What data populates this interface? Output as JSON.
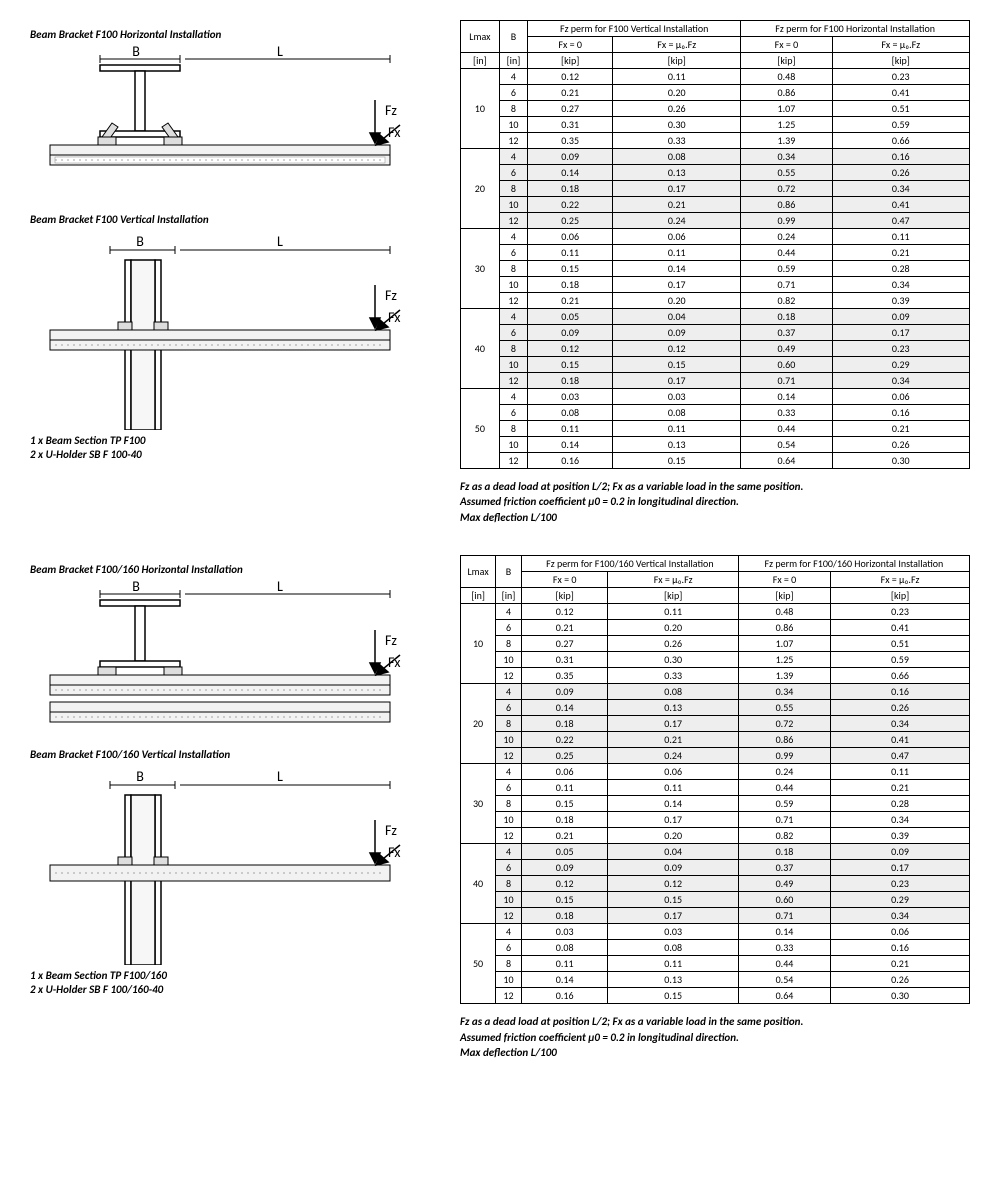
{
  "section1": {
    "title_h": "Beam Bracket F100 Horizontal Installation",
    "title_v": "Beam Bracket F100 Vertical Installation",
    "parts": [
      "1 x Beam Section TP F100",
      "2 x U-Holder SB F 100-40"
    ],
    "table": {
      "hdr_lmax": "Lmax",
      "hdr_b": "B",
      "hdr_vert": "Fz perm for F100 Vertical Installation",
      "hdr_horz": "Fz perm for F100 Horizontal Installation",
      "hdr_fx0": "Fx = 0",
      "hdr_fxmu": "Fx = μ₀.Fz",
      "unit_in": "[in]",
      "unit_kip": "[kip]",
      "groups": [
        {
          "lmax": "10",
          "shade": false,
          "rows": [
            [
              "4",
              "0.12",
              "0.11",
              "0.48",
              "0.23"
            ],
            [
              "6",
              "0.21",
              "0.20",
              "0.86",
              "0.41"
            ],
            [
              "8",
              "0.27",
              "0.26",
              "1.07",
              "0.51"
            ],
            [
              "10",
              "0.31",
              "0.30",
              "1.25",
              "0.59"
            ],
            [
              "12",
              "0.35",
              "0.33",
              "1.39",
              "0.66"
            ]
          ]
        },
        {
          "lmax": "20",
          "shade": true,
          "rows": [
            [
              "4",
              "0.09",
              "0.08",
              "0.34",
              "0.16"
            ],
            [
              "6",
              "0.14",
              "0.13",
              "0.55",
              "0.26"
            ],
            [
              "8",
              "0.18",
              "0.17",
              "0.72",
              "0.34"
            ],
            [
              "10",
              "0.22",
              "0.21",
              "0.86",
              "0.41"
            ],
            [
              "12",
              "0.25",
              "0.24",
              "0.99",
              "0.47"
            ]
          ]
        },
        {
          "lmax": "30",
          "shade": false,
          "rows": [
            [
              "4",
              "0.06",
              "0.06",
              "0.24",
              "0.11"
            ],
            [
              "6",
              "0.11",
              "0.11",
              "0.44",
              "0.21"
            ],
            [
              "8",
              "0.15",
              "0.14",
              "0.59",
              "0.28"
            ],
            [
              "10",
              "0.18",
              "0.17",
              "0.71",
              "0.34"
            ],
            [
              "12",
              "0.21",
              "0.20",
              "0.82",
              "0.39"
            ]
          ]
        },
        {
          "lmax": "40",
          "shade": true,
          "rows": [
            [
              "4",
              "0.05",
              "0.04",
              "0.18",
              "0.09"
            ],
            [
              "6",
              "0.09",
              "0.09",
              "0.37",
              "0.17"
            ],
            [
              "8",
              "0.12",
              "0.12",
              "0.49",
              "0.23"
            ],
            [
              "10",
              "0.15",
              "0.15",
              "0.60",
              "0.29"
            ],
            [
              "12",
              "0.18",
              "0.17",
              "0.71",
              "0.34"
            ]
          ]
        },
        {
          "lmax": "50",
          "shade": false,
          "rows": [
            [
              "4",
              "0.03",
              "0.03",
              "0.14",
              "0.06"
            ],
            [
              "6",
              "0.08",
              "0.08",
              "0.33",
              "0.16"
            ],
            [
              "8",
              "0.11",
              "0.11",
              "0.44",
              "0.21"
            ],
            [
              "10",
              "0.14",
              "0.13",
              "0.54",
              "0.26"
            ],
            [
              "12",
              "0.16",
              "0.15",
              "0.64",
              "0.30"
            ]
          ]
        }
      ]
    },
    "notes": [
      "Fz as a dead load at position L/2; Fx as a variable load in the same position.",
      "Assumed friction coefficient μ0 = 0.2 in longitudinal direction.",
      "Max deflection L/100"
    ]
  },
  "section2": {
    "title_h": "Beam Bracket F100/160 Horizontal Installation",
    "title_v": "Beam Bracket F100/160 Vertical Installation",
    "parts": [
      "1 x Beam Section TP F100/160",
      "2 x U-Holder SB F 100/160-40"
    ],
    "table": {
      "hdr_lmax": "Lmax",
      "hdr_b": "B",
      "hdr_vert": "Fz perm for F100/160 Vertical Installation",
      "hdr_horz": "Fz perm for F100/160 Horizontal Installation",
      "hdr_fx0": "Fx = 0",
      "hdr_fxmu": "Fx = μ₀.Fz",
      "unit_in": "[in]",
      "unit_kip": "[kip]",
      "groups": [
        {
          "lmax": "10",
          "shade": false,
          "rows": [
            [
              "4",
              "0.12",
              "0.11",
              "0.48",
              "0.23"
            ],
            [
              "6",
              "0.21",
              "0.20",
              "0.86",
              "0.41"
            ],
            [
              "8",
              "0.27",
              "0.26",
              "1.07",
              "0.51"
            ],
            [
              "10",
              "0.31",
              "0.30",
              "1.25",
              "0.59"
            ],
            [
              "12",
              "0.35",
              "0.33",
              "1.39",
              "0.66"
            ]
          ]
        },
        {
          "lmax": "20",
          "shade": true,
          "rows": [
            [
              "4",
              "0.09",
              "0.08",
              "0.34",
              "0.16"
            ],
            [
              "6",
              "0.14",
              "0.13",
              "0.55",
              "0.26"
            ],
            [
              "8",
              "0.18",
              "0.17",
              "0.72",
              "0.34"
            ],
            [
              "10",
              "0.22",
              "0.21",
              "0.86",
              "0.41"
            ],
            [
              "12",
              "0.25",
              "0.24",
              "0.99",
              "0.47"
            ]
          ]
        },
        {
          "lmax": "30",
          "shade": false,
          "rows": [
            [
              "4",
              "0.06",
              "0.06",
              "0.24",
              "0.11"
            ],
            [
              "6",
              "0.11",
              "0.11",
              "0.44",
              "0.21"
            ],
            [
              "8",
              "0.15",
              "0.14",
              "0.59",
              "0.28"
            ],
            [
              "10",
              "0.18",
              "0.17",
              "0.71",
              "0.34"
            ],
            [
              "12",
              "0.21",
              "0.20",
              "0.82",
              "0.39"
            ]
          ]
        },
        {
          "lmax": "40",
          "shade": true,
          "rows": [
            [
              "4",
              "0.05",
              "0.04",
              "0.18",
              "0.09"
            ],
            [
              "6",
              "0.09",
              "0.09",
              "0.37",
              "0.17"
            ],
            [
              "8",
              "0.12",
              "0.12",
              "0.49",
              "0.23"
            ],
            [
              "10",
              "0.15",
              "0.15",
              "0.60",
              "0.29"
            ],
            [
              "12",
              "0.18",
              "0.17",
              "0.71",
              "0.34"
            ]
          ]
        },
        {
          "lmax": "50",
          "shade": false,
          "rows": [
            [
              "4",
              "0.03",
              "0.03",
              "0.14",
              "0.06"
            ],
            [
              "6",
              "0.08",
              "0.08",
              "0.33",
              "0.16"
            ],
            [
              "8",
              "0.11",
              "0.11",
              "0.44",
              "0.21"
            ],
            [
              "10",
              "0.14",
              "0.13",
              "0.54",
              "0.26"
            ],
            [
              "12",
              "0.16",
              "0.15",
              "0.64",
              "0.30"
            ]
          ]
        }
      ]
    },
    "notes": [
      "Fz as a dead load at position L/2; Fx as a variable load in the same position.",
      "Assumed friction coefficient μ0 = 0.2 in longitudinal direction.",
      "Max deflection L/100"
    ]
  },
  "diagram_labels": {
    "B": "B",
    "L": "L",
    "Fz": "Fz",
    "Fx": "Fx"
  }
}
